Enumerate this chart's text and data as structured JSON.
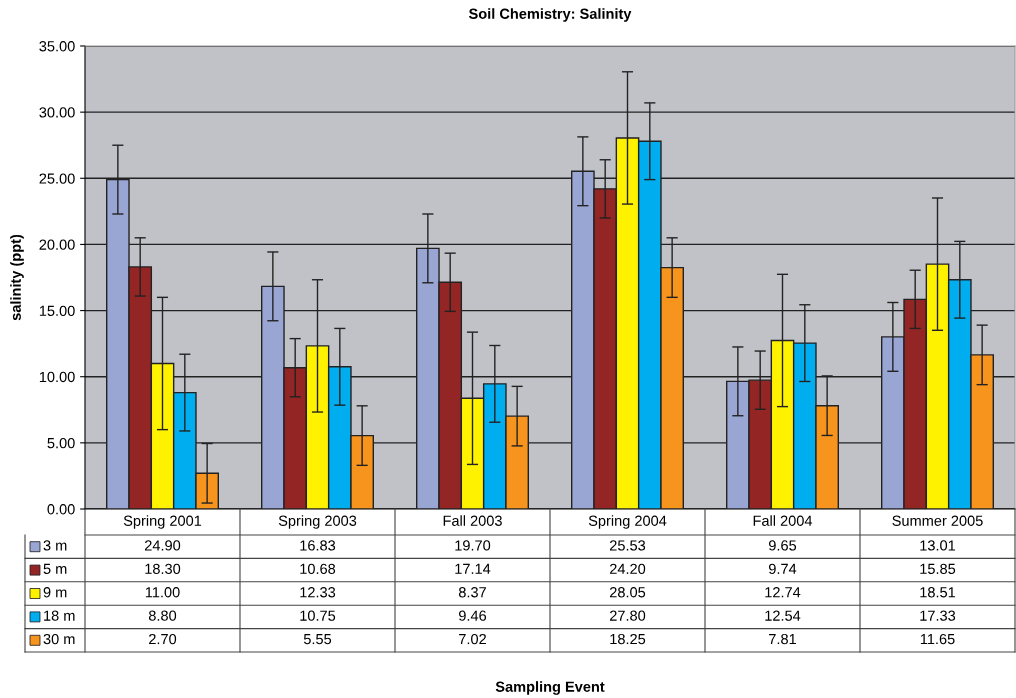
{
  "chart_data": {
    "type": "bar",
    "title": "Soil Chemistry: Salinity",
    "annotations": [
      "Sampling Event"
    ],
    "ylabel": "salinity (ppt)",
    "categories": [
      "Spring 2001",
      "Spring 2003",
      "Fall 2003",
      "Spring 2004",
      "Fall 2004",
      "Summer 2005"
    ],
    "series": [
      {
        "name": "3 m",
        "color": "#99a6d4",
        "values": [
          24.9,
          16.83,
          19.7,
          25.53,
          9.65,
          13.01
        ],
        "errors": [
          2.6,
          2.6,
          2.6,
          2.6,
          2.6,
          2.6
        ],
        "value_labels": [
          "24.90",
          "16.83",
          "19.70",
          "25.53",
          "9.65",
          "13.01"
        ]
      },
      {
        "name": "5 m",
        "color": "#932525",
        "values": [
          18.3,
          10.68,
          17.14,
          24.2,
          9.74,
          15.85
        ],
        "errors": [
          2.2,
          2.2,
          2.2,
          2.2,
          2.2,
          2.2
        ],
        "value_labels": [
          "18.30",
          "10.68",
          "17.14",
          "24.20",
          "9.74",
          "15.85"
        ]
      },
      {
        "name": "9 m",
        "color": "#fff200",
        "values": [
          11.0,
          12.33,
          8.37,
          28.05,
          12.74,
          18.51
        ],
        "errors": [
          5.0,
          5.0,
          5.0,
          5.0,
          5.0,
          5.0
        ],
        "value_labels": [
          "11.00",
          "12.33",
          "8.37",
          "28.05",
          "12.74",
          "18.51"
        ]
      },
      {
        "name": "18 m",
        "color": "#00aeef",
        "values": [
          8.8,
          10.75,
          9.46,
          27.8,
          12.54,
          17.33
        ],
        "errors": [
          2.9,
          2.9,
          2.9,
          2.9,
          2.9,
          2.9
        ],
        "value_labels": [
          "8.80",
          "10.75",
          "9.46",
          "27.80",
          "12.54",
          "17.33"
        ]
      },
      {
        "name": "30 m",
        "color": "#f7941d",
        "values": [
          2.7,
          5.55,
          7.02,
          18.25,
          7.81,
          11.65
        ],
        "errors": [
          2.25,
          2.25,
          2.25,
          2.25,
          2.25,
          2.25
        ],
        "value_labels": [
          "2.70",
          "5.55",
          "7.02",
          "18.25",
          "7.81",
          "11.65"
        ]
      }
    ],
    "ylim": [
      0,
      35
    ],
    "yticks": [
      {
        "value": 0,
        "label": "0.00"
      },
      {
        "value": 5,
        "label": "5.00"
      },
      {
        "value": 10,
        "label": "10.00"
      },
      {
        "value": 15,
        "label": "15.00"
      },
      {
        "value": 20,
        "label": "20.00"
      },
      {
        "value": 25,
        "label": "25.00"
      },
      {
        "value": 30,
        "label": "30.00"
      },
      {
        "value": 35,
        "label": "35.00"
      }
    ],
    "grid": "y",
    "legend": "bottom"
  }
}
